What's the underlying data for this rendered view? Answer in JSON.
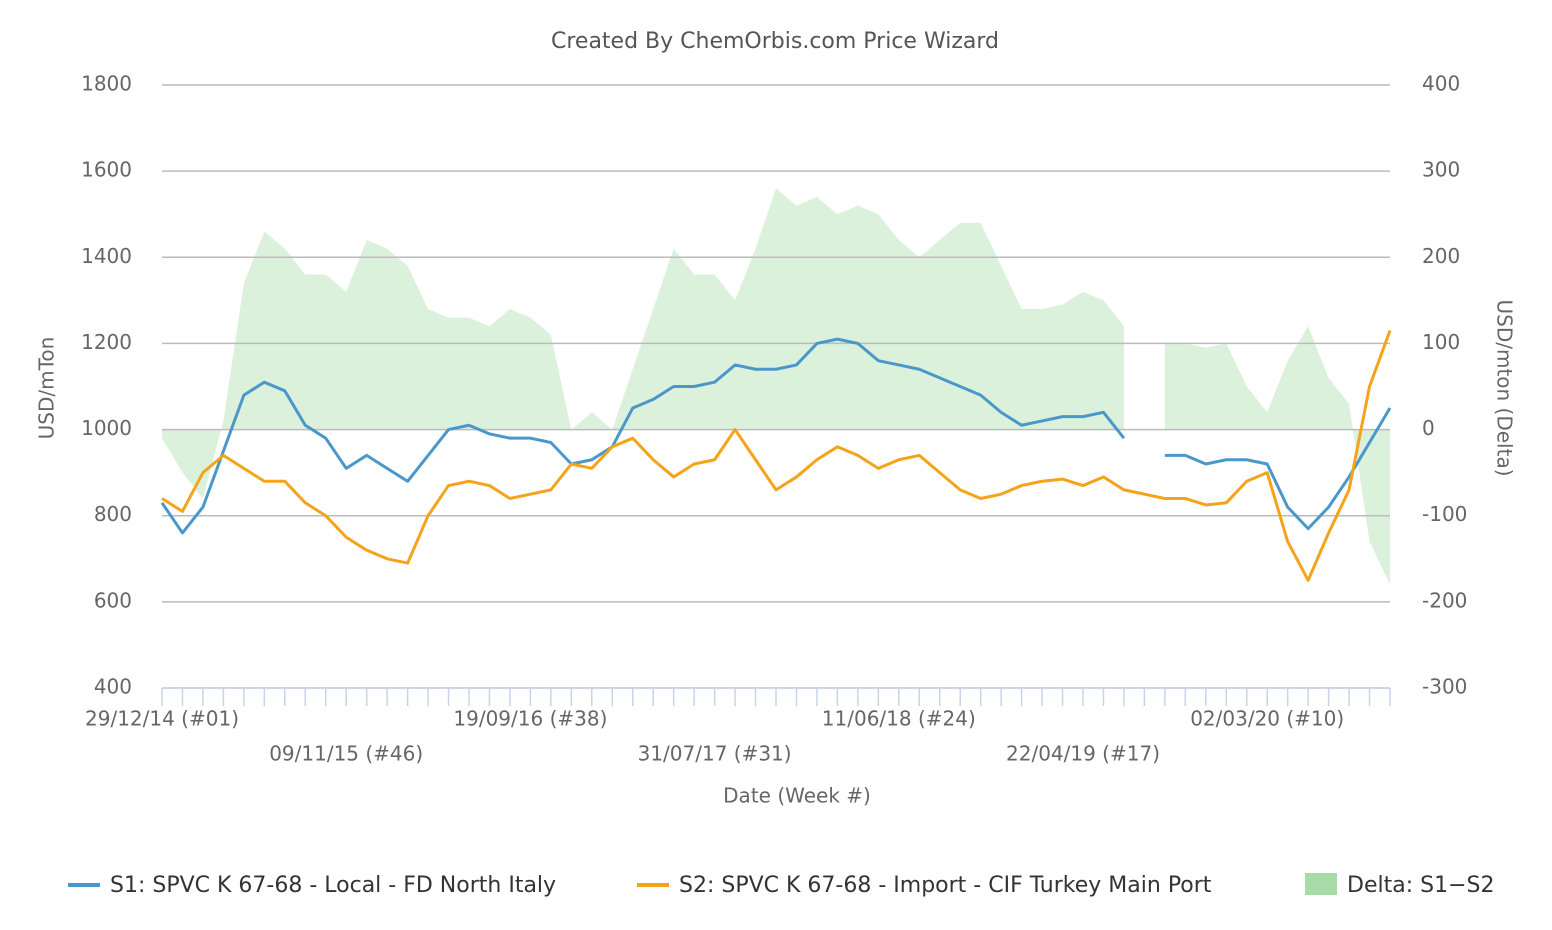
{
  "chart_data": {
    "type": "line",
    "title": "Created By ChemOrbis.com Price Wizard",
    "x_label": "Date (Week #)",
    "y_label": "USD/mTon",
    "y2_label": "USD/mton (Delta)",
    "categories": [
      "29/12/14 (#01)",
      null,
      null,
      null,
      null,
      null,
      null,
      null,
      null,
      "09/11/15 (#46)",
      null,
      null,
      null,
      null,
      null,
      null,
      null,
      null,
      "19/09/16 (#38)",
      null,
      null,
      null,
      null,
      null,
      null,
      null,
      null,
      "31/07/17 (#31)",
      null,
      null,
      null,
      null,
      null,
      null,
      null,
      null,
      "11/06/18 (#24)",
      null,
      null,
      null,
      null,
      null,
      null,
      null,
      null,
      "22/04/19 (#17)",
      null,
      null,
      null,
      null,
      null,
      null,
      null,
      null,
      "02/03/20 (#10)",
      null,
      null,
      null,
      null,
      null,
      null
    ],
    "series": [
      {
        "name": "S1: SPVC K 67-68 - Local - FD North Italy",
        "color": "#4a98c9",
        "type": "line",
        "values": [
          830,
          760,
          820,
          950,
          1080,
          1110,
          1090,
          1010,
          980,
          910,
          940,
          910,
          880,
          940,
          1000,
          1010,
          990,
          980,
          980,
          970,
          920,
          930,
          960,
          1050,
          1070,
          1100,
          1100,
          1110,
          1150,
          1140,
          1140,
          1150,
          1200,
          1210,
          1200,
          1160,
          1150,
          1140,
          1120,
          1100,
          1080,
          1040,
          1010,
          1020,
          1030,
          1030,
          1040,
          980,
          null,
          940,
          940,
          920,
          930,
          930,
          920,
          820,
          770,
          820,
          890,
          970,
          1050
        ]
      },
      {
        "name": "S2: SPVC K 67-68 - Import - CIF Turkey Main Port",
        "color": "#f5a31a",
        "type": "line",
        "values": [
          840,
          810,
          900,
          940,
          910,
          880,
          880,
          830,
          800,
          750,
          720,
          700,
          690,
          800,
          870,
          880,
          870,
          840,
          850,
          860,
          920,
          910,
          960,
          980,
          930,
          890,
          920,
          930,
          1000,
          930,
          860,
          890,
          930,
          960,
          940,
          910,
          930,
          940,
          900,
          860,
          840,
          850,
          870,
          880,
          885,
          870,
          890,
          860,
          850,
          840,
          840,
          825,
          830,
          880,
          900,
          740,
          650,
          760,
          860,
          1100,
          1230
        ]
      },
      {
        "name": "Delta: S1−S2",
        "color": "#a8dba8",
        "type": "area",
        "axis": "y2",
        "values": [
          -10,
          -50,
          -80,
          10,
          170,
          230,
          210,
          180,
          180,
          160,
          220,
          210,
          190,
          140,
          130,
          130,
          120,
          140,
          130,
          110,
          0,
          20,
          0,
          70,
          140,
          210,
          180,
          180,
          150,
          210,
          280,
          260,
          270,
          250,
          260,
          250,
          220,
          200,
          220,
          240,
          240,
          190,
          140,
          140,
          145,
          160,
          150,
          120,
          null,
          100,
          100,
          95,
          100,
          50,
          20,
          80,
          120,
          60,
          30,
          -130,
          -180
        ]
      }
    ],
    "ylim": [
      400,
      1800
    ],
    "yticks": [
      400,
      600,
      800,
      1000,
      1200,
      1400,
      1600,
      1800
    ],
    "y2lim": [
      -300,
      400
    ],
    "y2ticks": [
      -300,
      -200,
      -100,
      0,
      100,
      200,
      300,
      400
    ],
    "grid": true,
    "legend": "bottom"
  }
}
